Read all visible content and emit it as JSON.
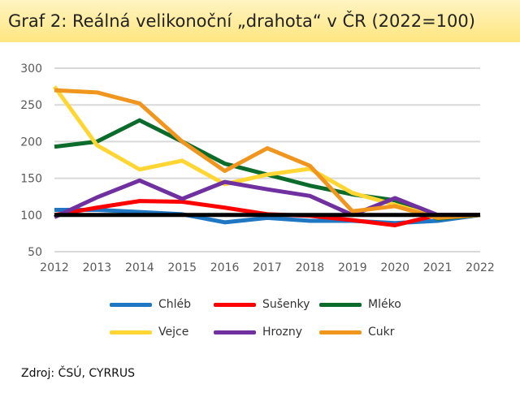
{
  "chart_data": {
    "type": "line",
    "title": "Graf 2: Reálná velikonoční „drahota“ v ČR (2022=100)",
    "x": [
      2012,
      2013,
      2014,
      2015,
      2016,
      2017,
      2018,
      2019,
      2020,
      2021,
      2022
    ],
    "ylim": [
      50,
      300
    ],
    "yticks": [
      50,
      100,
      150,
      200,
      250,
      300
    ],
    "grid": true,
    "legend_position": "bottom",
    "series": [
      {
        "name": "Chléb",
        "color": "#1f77c4",
        "values": [
          107,
          107,
          104,
          101,
          90,
          96,
          92,
          92,
          89,
          92,
          100
        ]
      },
      {
        "name": "Sušenky",
        "color": "#ff0000",
        "values": [
          100,
          110,
          119,
          118,
          110,
          101,
          99,
          93,
          86,
          100,
          100
        ]
      },
      {
        "name": "Mléko",
        "color": "#0b6b2b",
        "values": [
          193,
          200,
          229,
          200,
          170,
          155,
          140,
          128,
          120,
          95,
          100
        ]
      },
      {
        "name": "Vejce",
        "color": "#ffd633",
        "values": [
          275,
          195,
          162,
          174,
          142,
          155,
          163,
          130,
          114,
          97,
          100
        ]
      },
      {
        "name": "Hrozny",
        "color": "#7030a0",
        "values": [
          97,
          124,
          147,
          122,
          145,
          135,
          126,
          100,
          123,
          100,
          100
        ]
      },
      {
        "name": "Cukr",
        "color": "#f0961e",
        "values": [
          270,
          267,
          252,
          200,
          160,
          191,
          167,
          105,
          112,
          96,
          100
        ]
      },
      {
        "color": "#000000",
        "values": [
          100,
          100,
          100,
          100,
          100,
          100,
          100,
          100,
          100,
          100,
          100
        ]
      }
    ]
  },
  "source": "Zdroj: ČSÚ, CYRRUS"
}
